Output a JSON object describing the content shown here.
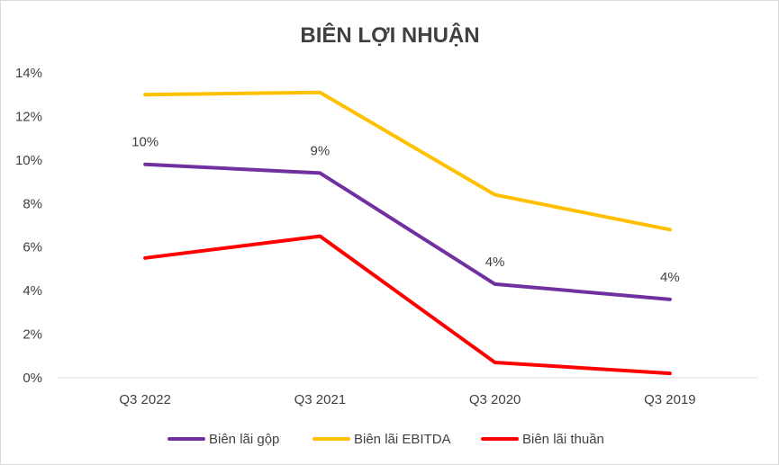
{
  "chart_data": {
    "type": "line",
    "title": "BIÊN LỢI NHUẬN",
    "categories": [
      "Q3 2022",
      "Q3 2021",
      "Q3 2020",
      "Q3 2019"
    ],
    "y_ticks": [
      "0%",
      "2%",
      "4%",
      "6%",
      "8%",
      "10%",
      "12%",
      "14%"
    ],
    "ylim": [
      0,
      14
    ],
    "y_unit": "%",
    "grid": false,
    "legend_position": "bottom",
    "series": [
      {
        "name": "Biên lãi gộp",
        "color": "#7030a0",
        "values": [
          9.8,
          9.4,
          4.3,
          3.6
        ],
        "data_labels": [
          "10%",
          "9%",
          "4%",
          "4%"
        ]
      },
      {
        "name": "Biên lãi EBITDA",
        "color": "#ffc000",
        "values": [
          13.0,
          13.1,
          8.4,
          6.8
        ],
        "data_labels": null
      },
      {
        "name": "Biên lãi thuần",
        "color": "#ff0000",
        "values": [
          5.5,
          6.5,
          0.7,
          0.2
        ],
        "data_labels": null
      }
    ]
  }
}
